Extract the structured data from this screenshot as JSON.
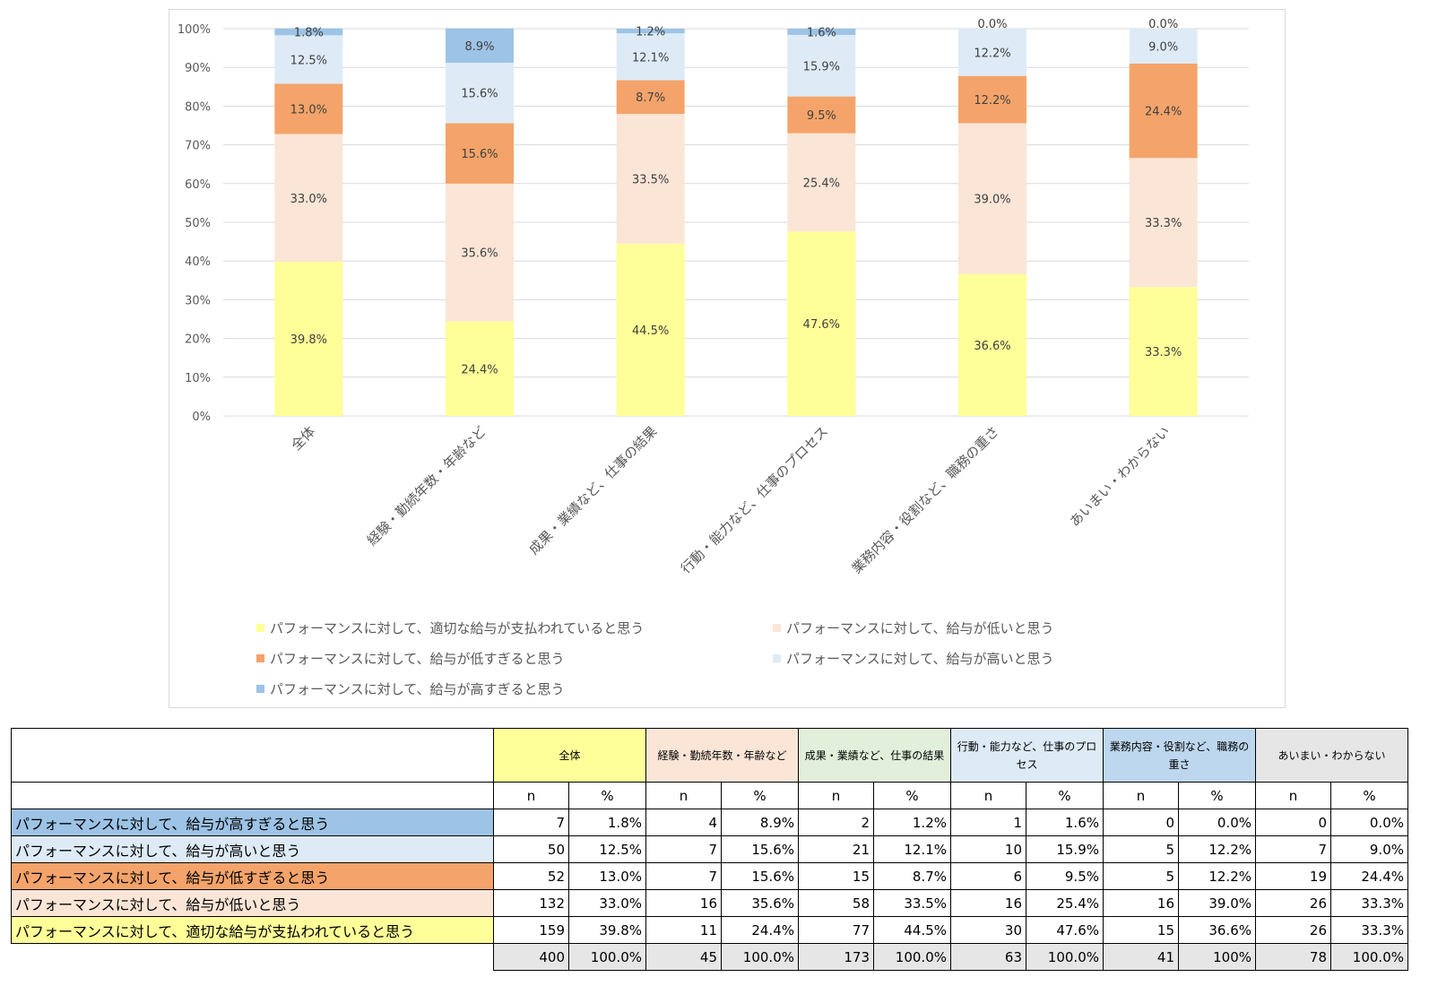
{
  "chart_data": {
    "type": "bar",
    "stacked": true,
    "percent_stacked": true,
    "ylim": [
      0,
      100
    ],
    "y_ticks": [
      "0%",
      "10%",
      "20%",
      "30%",
      "40%",
      "50%",
      "60%",
      "70%",
      "80%",
      "90%",
      "100%"
    ],
    "grid": true,
    "legend_position": "bottom",
    "categories": [
      "全体",
      "経験・勤続年数・年齢など",
      "成果・業績など、仕事の結果",
      "行動・能力など、仕事のプロセス",
      "業務内容・役割など、職務の重さ",
      "あいまい・わからない"
    ],
    "series": [
      {
        "name": "パフォーマンスに対して、適切な給与が支払われていると思う",
        "color": "#ffff99",
        "values": [
          39.8,
          24.4,
          44.5,
          47.6,
          36.6,
          33.3
        ],
        "labels": [
          "39.8%",
          "24.4%",
          "44.5%",
          "47.6%",
          "36.6%",
          "33.3%"
        ]
      },
      {
        "name": "パフォーマンスに対して、給与が低いと思う",
        "color": "#fbe5d6",
        "values": [
          33.0,
          35.6,
          33.5,
          25.4,
          39.0,
          33.3
        ],
        "labels": [
          "33.0%",
          "35.6%",
          "33.5%",
          "25.4%",
          "39.0%",
          "33.3%"
        ]
      },
      {
        "name": "パフォーマンスに対して、給与が低すぎると思う",
        "color": "#f4a46a",
        "values": [
          13.0,
          15.6,
          8.7,
          9.5,
          12.2,
          24.4
        ],
        "labels": [
          "13.0%",
          "15.6%",
          "8.7%",
          "9.5%",
          "12.2%",
          "24.4%"
        ]
      },
      {
        "name": "パフォーマンスに対して、給与が高いと思う",
        "color": "#deebf7",
        "values": [
          12.5,
          15.6,
          12.1,
          15.9,
          12.2,
          9.0
        ],
        "labels": [
          "12.5%",
          "15.6%",
          "12.1%",
          "15.9%",
          "12.2%",
          "9.0%"
        ]
      },
      {
        "name": "パフォーマンスに対して、給与が高すぎると思う",
        "color": "#9dc3e6",
        "values": [
          1.8,
          8.9,
          1.2,
          1.6,
          0.0,
          0.0
        ],
        "labels": [
          "1.8%",
          "8.9%",
          "1.2%",
          "1.6%",
          "0.0%",
          "0.0%"
        ]
      }
    ]
  },
  "table": {
    "groups": [
      {
        "label": "全体",
        "color": "#ffff99"
      },
      {
        "label": "経験・勤続年数・年齢など",
        "color": "#fbe5d6"
      },
      {
        "label": "成果・業績など、仕事の結果",
        "color": "#e2efda"
      },
      {
        "label": "行動・能力など、仕事のプロセス",
        "color": "#ddebf7"
      },
      {
        "label": "業務内容・役割など、職務の重さ",
        "color": "#bdd7ee"
      },
      {
        "label": "あいまい・わからない",
        "color": "#e7e6e6"
      }
    ],
    "sub_n": "n",
    "sub_pct": "%",
    "rows": [
      {
        "label": "パフォーマンスに対して、給与が高すぎると思う",
        "color": "#9dc3e6",
        "cells": [
          "7",
          "1.8%",
          "4",
          "8.9%",
          "2",
          "1.2%",
          "1",
          "1.6%",
          "0",
          "0.0%",
          "0",
          "0.0%"
        ]
      },
      {
        "label": "パフォーマンスに対して、給与が高いと思う",
        "color": "#deebf7",
        "cells": [
          "50",
          "12.5%",
          "7",
          "15.6%",
          "21",
          "12.1%",
          "10",
          "15.9%",
          "5",
          "12.2%",
          "7",
          "9.0%"
        ]
      },
      {
        "label": "パフォーマンスに対して、給与が低すぎると思う",
        "color": "#f4a46a",
        "cells": [
          "52",
          "13.0%",
          "7",
          "15.6%",
          "15",
          "8.7%",
          "6",
          "9.5%",
          "5",
          "12.2%",
          "19",
          "24.4%"
        ]
      },
      {
        "label": "パフォーマンスに対して、給与が低いと思う",
        "color": "#fbe5d6",
        "cells": [
          "132",
          "33.0%",
          "16",
          "35.6%",
          "58",
          "33.5%",
          "16",
          "25.4%",
          "16",
          "39.0%",
          "26",
          "33.3%"
        ]
      },
      {
        "label": "パフォーマンスに対して、適切な給与が支払われていると思う",
        "color": "#ffff99",
        "cells": [
          "159",
          "39.8%",
          "11",
          "24.4%",
          "77",
          "44.5%",
          "30",
          "47.6%",
          "15",
          "36.6%",
          "26",
          "33.3%"
        ]
      }
    ],
    "total": [
      "400",
      "100.0%",
      "45",
      "100.0%",
      "173",
      "100.0%",
      "63",
      "100.0%",
      "41",
      "100%",
      "78",
      "100.0%"
    ]
  }
}
